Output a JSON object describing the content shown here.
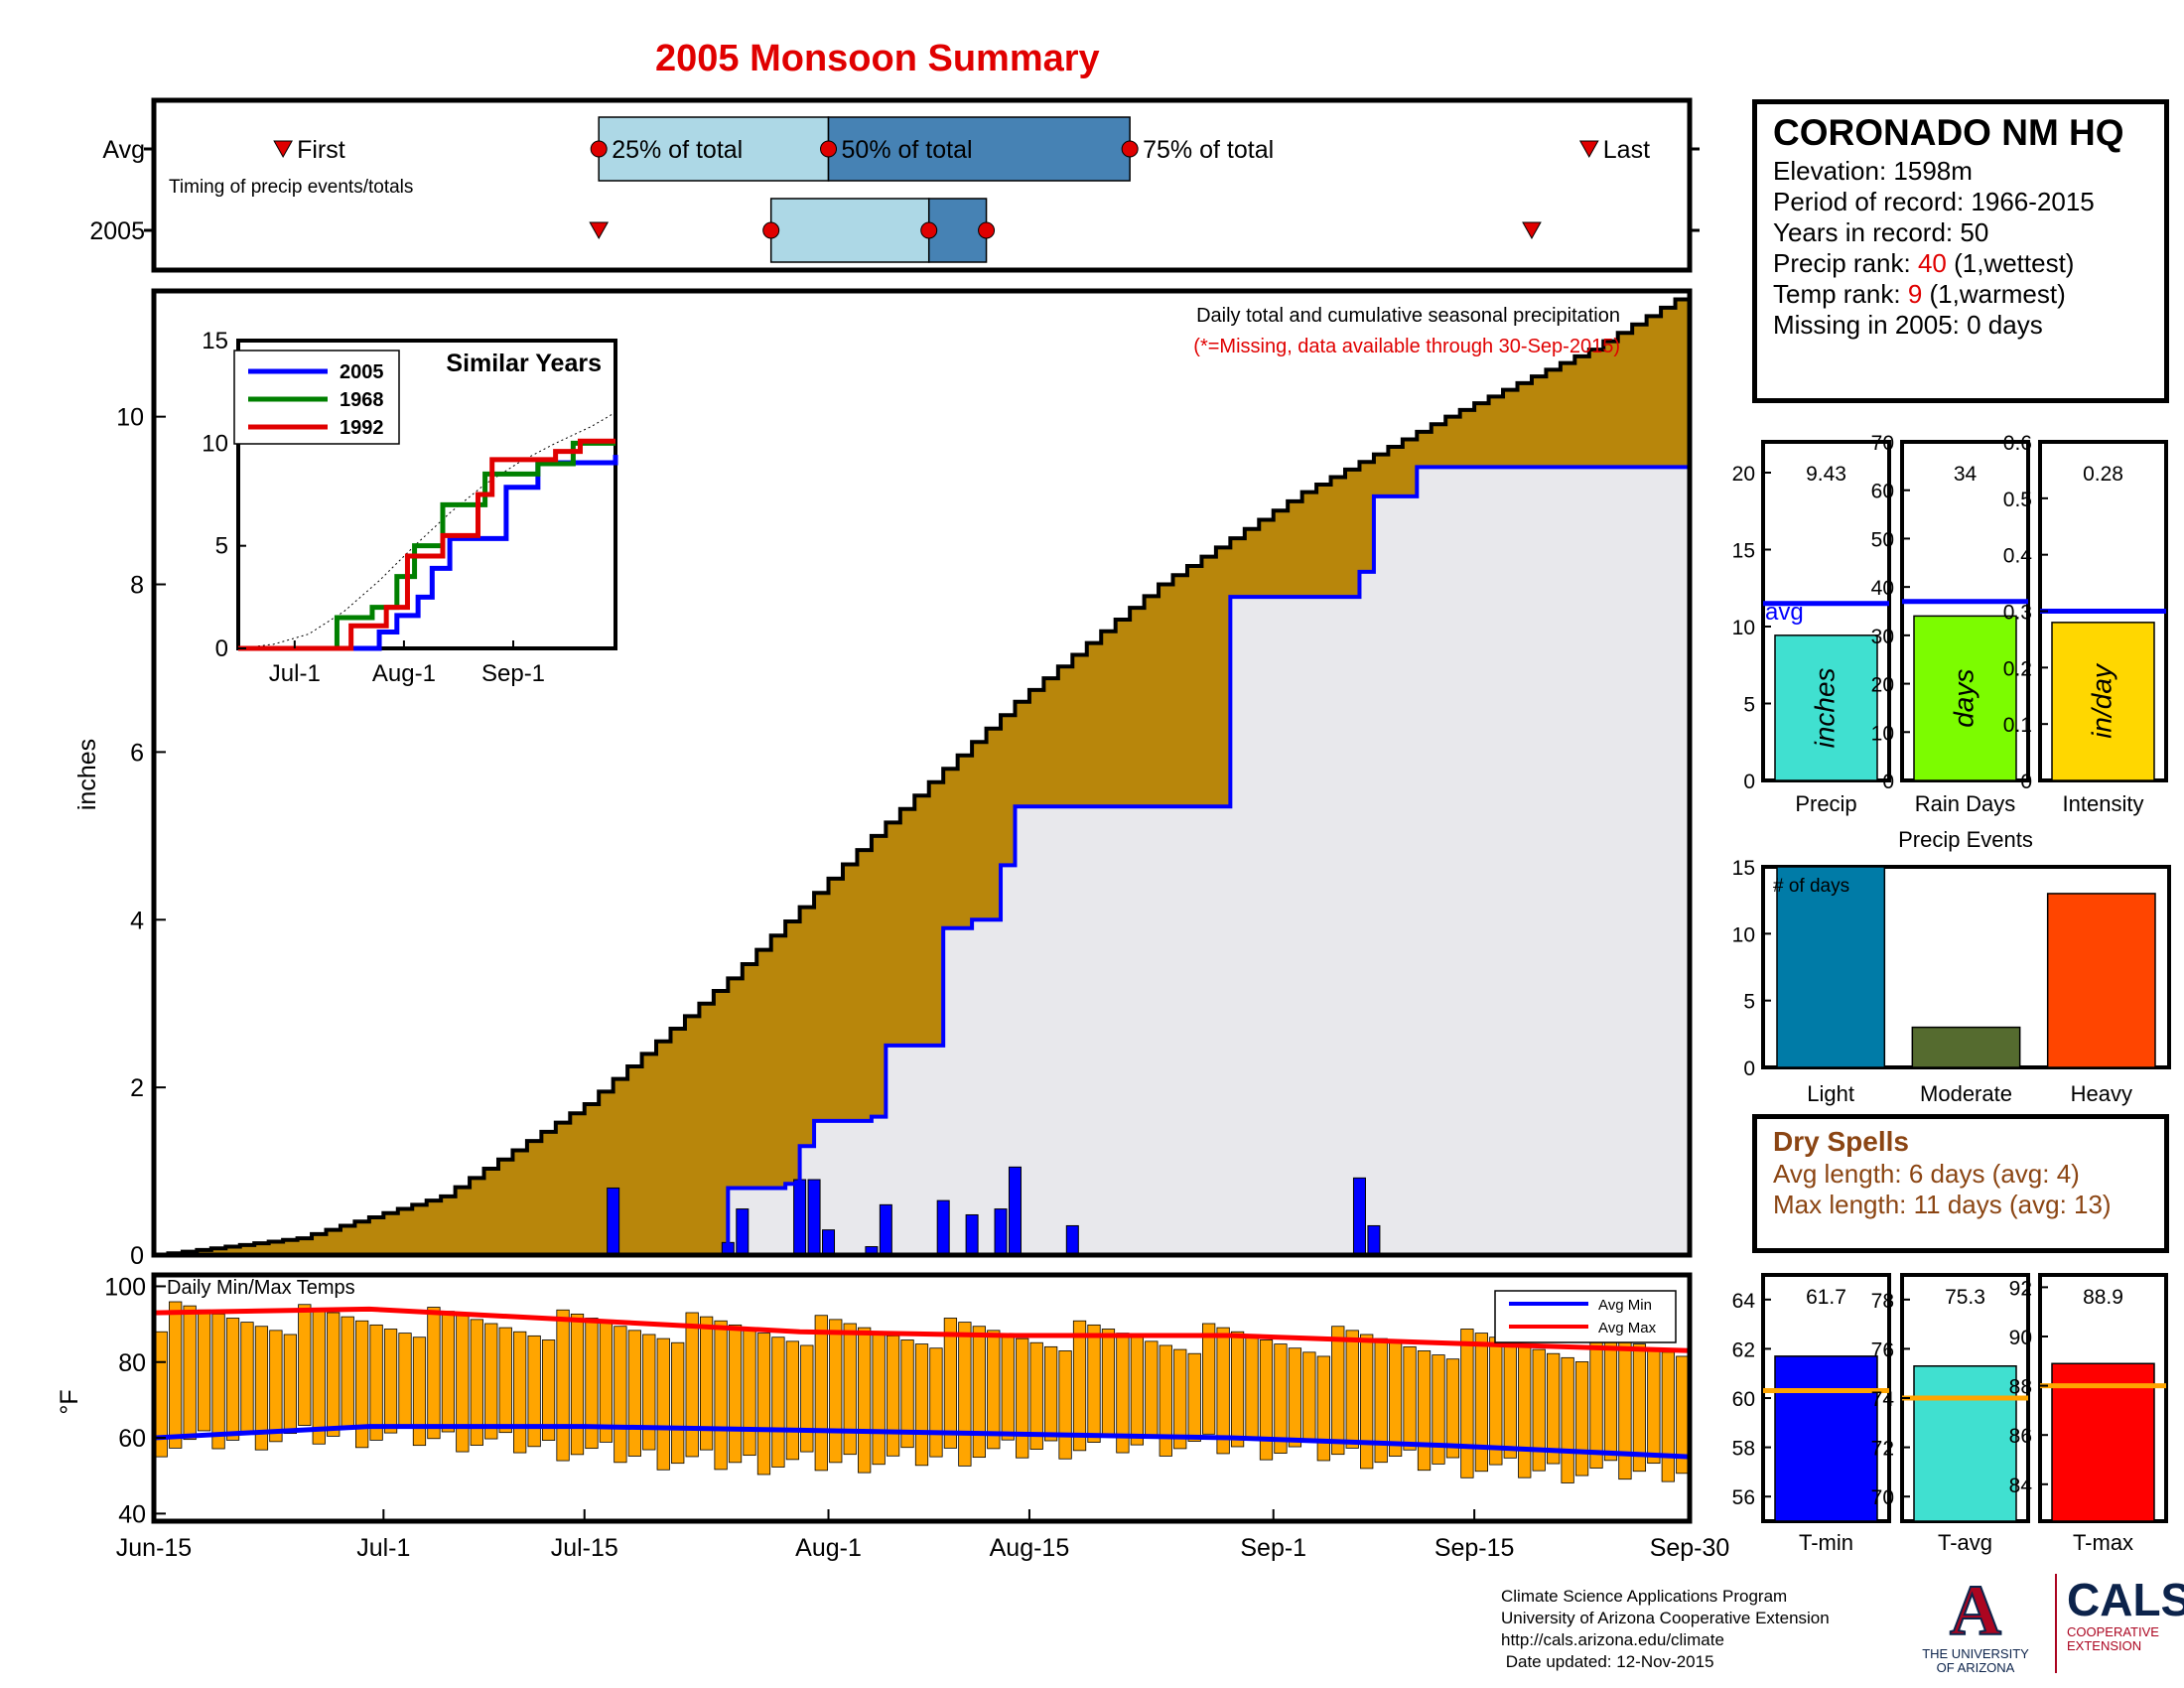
{
  "page_title": "2005 Monsoon Summary",
  "station": {
    "name": "CORONADO NM HQ",
    "elevation": "Elevation: 1598m",
    "period": "Period of record: 1966-2015",
    "years": "Years in record: 50",
    "precip_rank_label": "Precip rank: ",
    "precip_rank_value": "40",
    "precip_rank_note": " (1,wettest)",
    "temp_rank_label": "Temp rank: ",
    "temp_rank_value": "9",
    "temp_rank_note": " (1,warmest)",
    "missing": "Missing in 2005: 0 days"
  },
  "dry_spells": {
    "title": "Dry Spells",
    "avg": "Avg length: 6 days (avg: 4)",
    "max": "Max length: 11 days (avg: 13)"
  },
  "credits": {
    "line1": "Climate Science Applications Program",
    "line2": "University of Arizona Cooperative Extension",
    "line3": "http://cals.arizona.edu/climate",
    "line4": " Date updated: 12-Nov-2015"
  },
  "logos": {
    "ua_letter": "A",
    "ua_name_1": "THE UNIVERSITY",
    "ua_name_2": "OF ARIZONA",
    "cals": "CALS",
    "cals_sub_1": "COOPERATIVE",
    "cals_sub_2": "EXTENSION"
  },
  "chart_data": [
    {
      "id": "timing",
      "type": "bar",
      "rows": [
        "Avg",
        "2005"
      ],
      "note": "Timing of precip events/totals",
      "labels": {
        "first": "First",
        "last": "Last",
        "p25": "25% of total",
        "p50": "50% of total",
        "p75": "75% of total"
      },
      "avg": {
        "first": "Jun-24",
        "p25": "Jul-16",
        "p50": "Aug-1",
        "p75": "Aug-22",
        "last": "Sep-23"
      },
      "year": {
        "first": "Jul-16",
        "p25": "Jul-28",
        "p50": "Aug-8",
        "p75": "Aug-12",
        "last": "Sep-19"
      },
      "colors": {
        "light": "#add8e6",
        "dark": "#4682b4",
        "marker": "#e00000"
      }
    },
    {
      "id": "cumulative_precip",
      "type": "area",
      "title": "Daily total and cumulative seasonal precipitation",
      "subtitle": "(*=Missing, data available through 30-Sep-2015)",
      "ylabel": "inches",
      "ylim": [
        0,
        11.5
      ],
      "yticks": [
        "0",
        "2",
        "4",
        "6",
        "8",
        "10"
      ],
      "xticks": [
        "Jun-15",
        "Jul-1",
        "Jul-15",
        "Aug-1",
        "Aug-15",
        "Sep-1",
        "Sep-15",
        "Sep-30"
      ],
      "avg_cumulative": {
        "day": [
          0,
          10,
          20,
          30,
          40,
          50,
          60,
          70,
          80,
          90,
          100,
          107
        ],
        "value": [
          0,
          0.2,
          0.7,
          1.8,
          3.3,
          5.0,
          6.6,
          8.0,
          9.1,
          10.0,
          10.8,
          11.5
        ]
      },
      "year_cumulative": {
        "day": [
          0,
          32,
          40,
          41,
          44,
          45,
          46,
          47,
          50,
          51,
          55,
          57,
          59,
          60,
          75,
          76,
          84,
          85,
          88,
          107
        ],
        "value": [
          0,
          0,
          0.8,
          0.8,
          0.85,
          1.3,
          1.6,
          1.6,
          1.65,
          2.5,
          3.9,
          4.0,
          4.65,
          5.35,
          7.85,
          7.85,
          8.15,
          9.05,
          9.4,
          9.43
        ]
      },
      "daily_bars": {
        "day": [
          32,
          40,
          41,
          45,
          46,
          47,
          50,
          51,
          55,
          57,
          59,
          60,
          64,
          85,
          84
        ],
        "value": [
          0.8,
          0.15,
          0.55,
          0.9,
          0.9,
          0.3,
          0.1,
          0.6,
          0.65,
          0.48,
          0.55,
          1.05,
          0.35,
          0.35,
          0.92
        ]
      },
      "colors": {
        "avg_fill": "#b8860b",
        "year_fill": "#e8e8ec",
        "year_line": "#0000ff"
      },
      "inset": {
        "title": "Similar Years",
        "ylim": [
          0,
          15
        ],
        "yticks": [
          "0",
          "5",
          "10",
          "15"
        ],
        "xticks": [
          "Jul-1",
          "Aug-1",
          "Sep-1"
        ],
        "series": [
          {
            "name": "2005",
            "color": "#0000ff",
            "day": [
              0,
              32,
              40,
              45,
              47,
              51,
              55,
              60,
              76,
              85,
              107
            ],
            "value": [
              0,
              0,
              0.8,
              1.6,
              1.6,
              2.5,
              3.9,
              5.35,
              7.85,
              9.05,
              9.43
            ]
          },
          {
            "name": "1968",
            "color": "#008000",
            "day": [
              0,
              25,
              28,
              38,
              45,
              50,
              58,
              70,
              85,
              95,
              107
            ],
            "value": [
              0,
              0,
              1.5,
              2.0,
              3.5,
              5.0,
              7.0,
              8.5,
              9.0,
              10.0,
              10.0
            ]
          },
          {
            "name": "1992",
            "color": "#e00000",
            "day": [
              0,
              28,
              32,
              42,
              48,
              58,
              68,
              72,
              90,
              97,
              107
            ],
            "value": [
              0,
              0,
              1.1,
              2.0,
              4.5,
              5.5,
              7.5,
              9.2,
              9.6,
              10.1,
              10.1
            ]
          }
        ]
      }
    },
    {
      "id": "temps",
      "type": "bar",
      "title": "Daily Min/Max Temps",
      "ylabel": "°F",
      "ylim": [
        40,
        100
      ],
      "yticks": [
        "40",
        "60",
        "80",
        "100"
      ],
      "legend": [
        {
          "name": "Avg Min",
          "color": "#0000ff"
        },
        {
          "name": "Avg Max",
          "color": "#ff0000"
        }
      ],
      "avg_min": {
        "day": [
          0,
          15,
          30,
          45,
          60,
          75,
          90,
          107
        ],
        "value": [
          60,
          63,
          63,
          62,
          61,
          60,
          58,
          55
        ]
      },
      "avg_max": {
        "day": [
          0,
          15,
          30,
          45,
          60,
          75,
          90,
          107
        ],
        "value": [
          93,
          94,
          91,
          88,
          87,
          87,
          85,
          83
        ]
      },
      "bar_color": "#ffa500"
    },
    {
      "id": "seasonal_stats",
      "type": "bar",
      "panels": [
        {
          "label": "Precip",
          "unit": "inches",
          "value": 9.43,
          "value_text": "9.43",
          "avg": 11.5,
          "ylim": [
            0,
            22
          ],
          "yticks": [
            "0",
            "5",
            "10",
            "15",
            "20"
          ],
          "color": "#40e0d0",
          "avg_label": "avg"
        },
        {
          "label": "Rain Days",
          "unit": "days",
          "value": 34,
          "value_text": "34",
          "avg": 37,
          "ylim": [
            0,
            70
          ],
          "yticks": [
            "0",
            "10",
            "20",
            "30",
            "40",
            "50",
            "60",
            "70"
          ],
          "color": "#7cfc00"
        },
        {
          "label": "Intensity",
          "unit": "in/day",
          "value": 0.28,
          "value_text": "0.28",
          "avg": 0.3,
          "ylim": [
            0,
            0.6
          ],
          "yticks": [
            "0",
            "0.1",
            "0.2",
            "0.3",
            "0.4",
            "0.5",
            "0.6"
          ],
          "color": "#ffd700"
        }
      ]
    },
    {
      "id": "precip_events",
      "type": "bar",
      "title": "Precip Events",
      "note": "# of days",
      "categories": [
        "Light",
        "Moderate",
        "Heavy"
      ],
      "values": [
        15,
        3,
        13
      ],
      "colors": [
        "#007ba7",
        "#556b2f",
        "#ff4500"
      ],
      "ylim": [
        0,
        15
      ],
      "yticks": [
        "0",
        "5",
        "10",
        "15"
      ]
    },
    {
      "id": "temp_stats",
      "type": "bar",
      "panels": [
        {
          "label": "T-min",
          "value": 61.7,
          "value_text": "61.7",
          "avg": 60.3,
          "ylim": [
            55,
            65
          ],
          "yticks": [
            "56",
            "58",
            "60",
            "62",
            "64"
          ],
          "color": "#0000ff"
        },
        {
          "label": "T-avg",
          "value": 75.3,
          "value_text": "75.3",
          "avg": 74.0,
          "ylim": [
            69,
            79
          ],
          "yticks": [
            "70",
            "72",
            "74",
            "76",
            "78"
          ],
          "color": "#40e0d0"
        },
        {
          "label": "T-max",
          "value": 88.9,
          "value_text": "88.9",
          "avg": 88.0,
          "ylim": [
            82.5,
            92.5
          ],
          "yticks": [
            "84",
            "86",
            "88",
            "90",
            "92"
          ],
          "color": "#ff0000"
        }
      ]
    }
  ]
}
